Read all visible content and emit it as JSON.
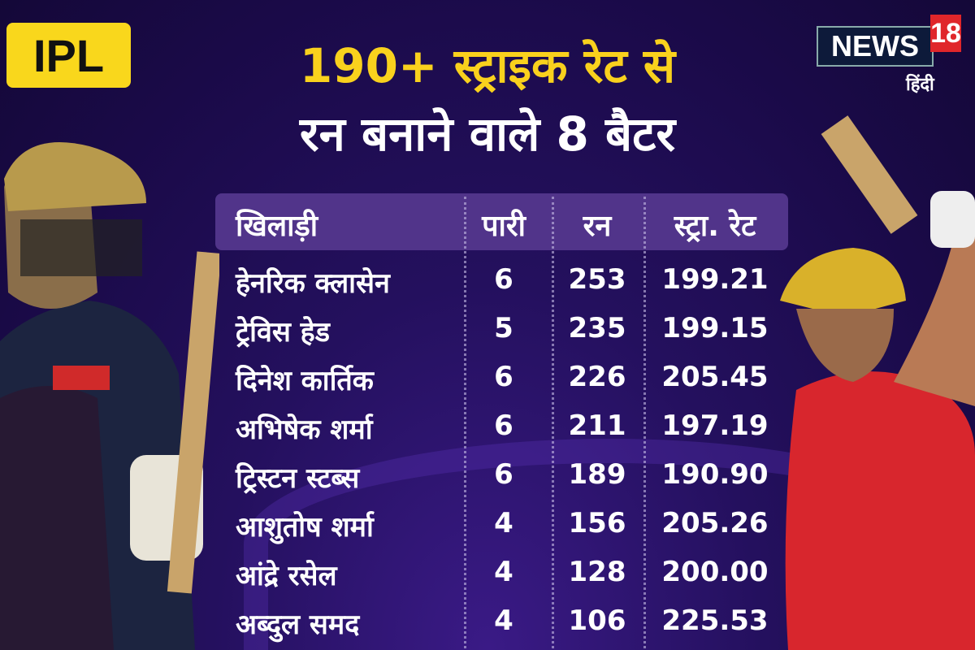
{
  "badge": "IPL",
  "title": {
    "line1": "190+ स्ट्राइक रेट से",
    "line2": "रन बनाने वाले 8 बैटर"
  },
  "logo": {
    "brand": "NEWS",
    "number": "18",
    "language": "हिंदी"
  },
  "colors": {
    "background": "#1e0c4e",
    "title_yellow": "#f9d11d",
    "header_row": "#51348a",
    "logo_red": "#e0262a"
  },
  "table": {
    "headers": [
      "खिलाड़ी",
      "पारी",
      "रन",
      "स्ट्रा. रेट"
    ],
    "rows": [
      [
        "हेनरिक क्लासेन",
        "6",
        "253",
        "199.21"
      ],
      [
        "ट्रेविस हेड",
        "5",
        "235",
        "199.15"
      ],
      [
        "दिनेश कार्तिक",
        "6",
        "226",
        "205.45"
      ],
      [
        "अभिषेक शर्मा",
        "6",
        "211",
        "197.19"
      ],
      [
        "ट्रिस्टन स्टब्स",
        "6",
        "189",
        "190.90"
      ],
      [
        "आशुतोष शर्मा",
        "4",
        "156",
        "205.26"
      ],
      [
        "आंद्रे रसेल",
        "4",
        "128",
        "200.00"
      ],
      [
        "अब्दुल समद",
        "4",
        "106",
        "225.53"
      ]
    ]
  }
}
